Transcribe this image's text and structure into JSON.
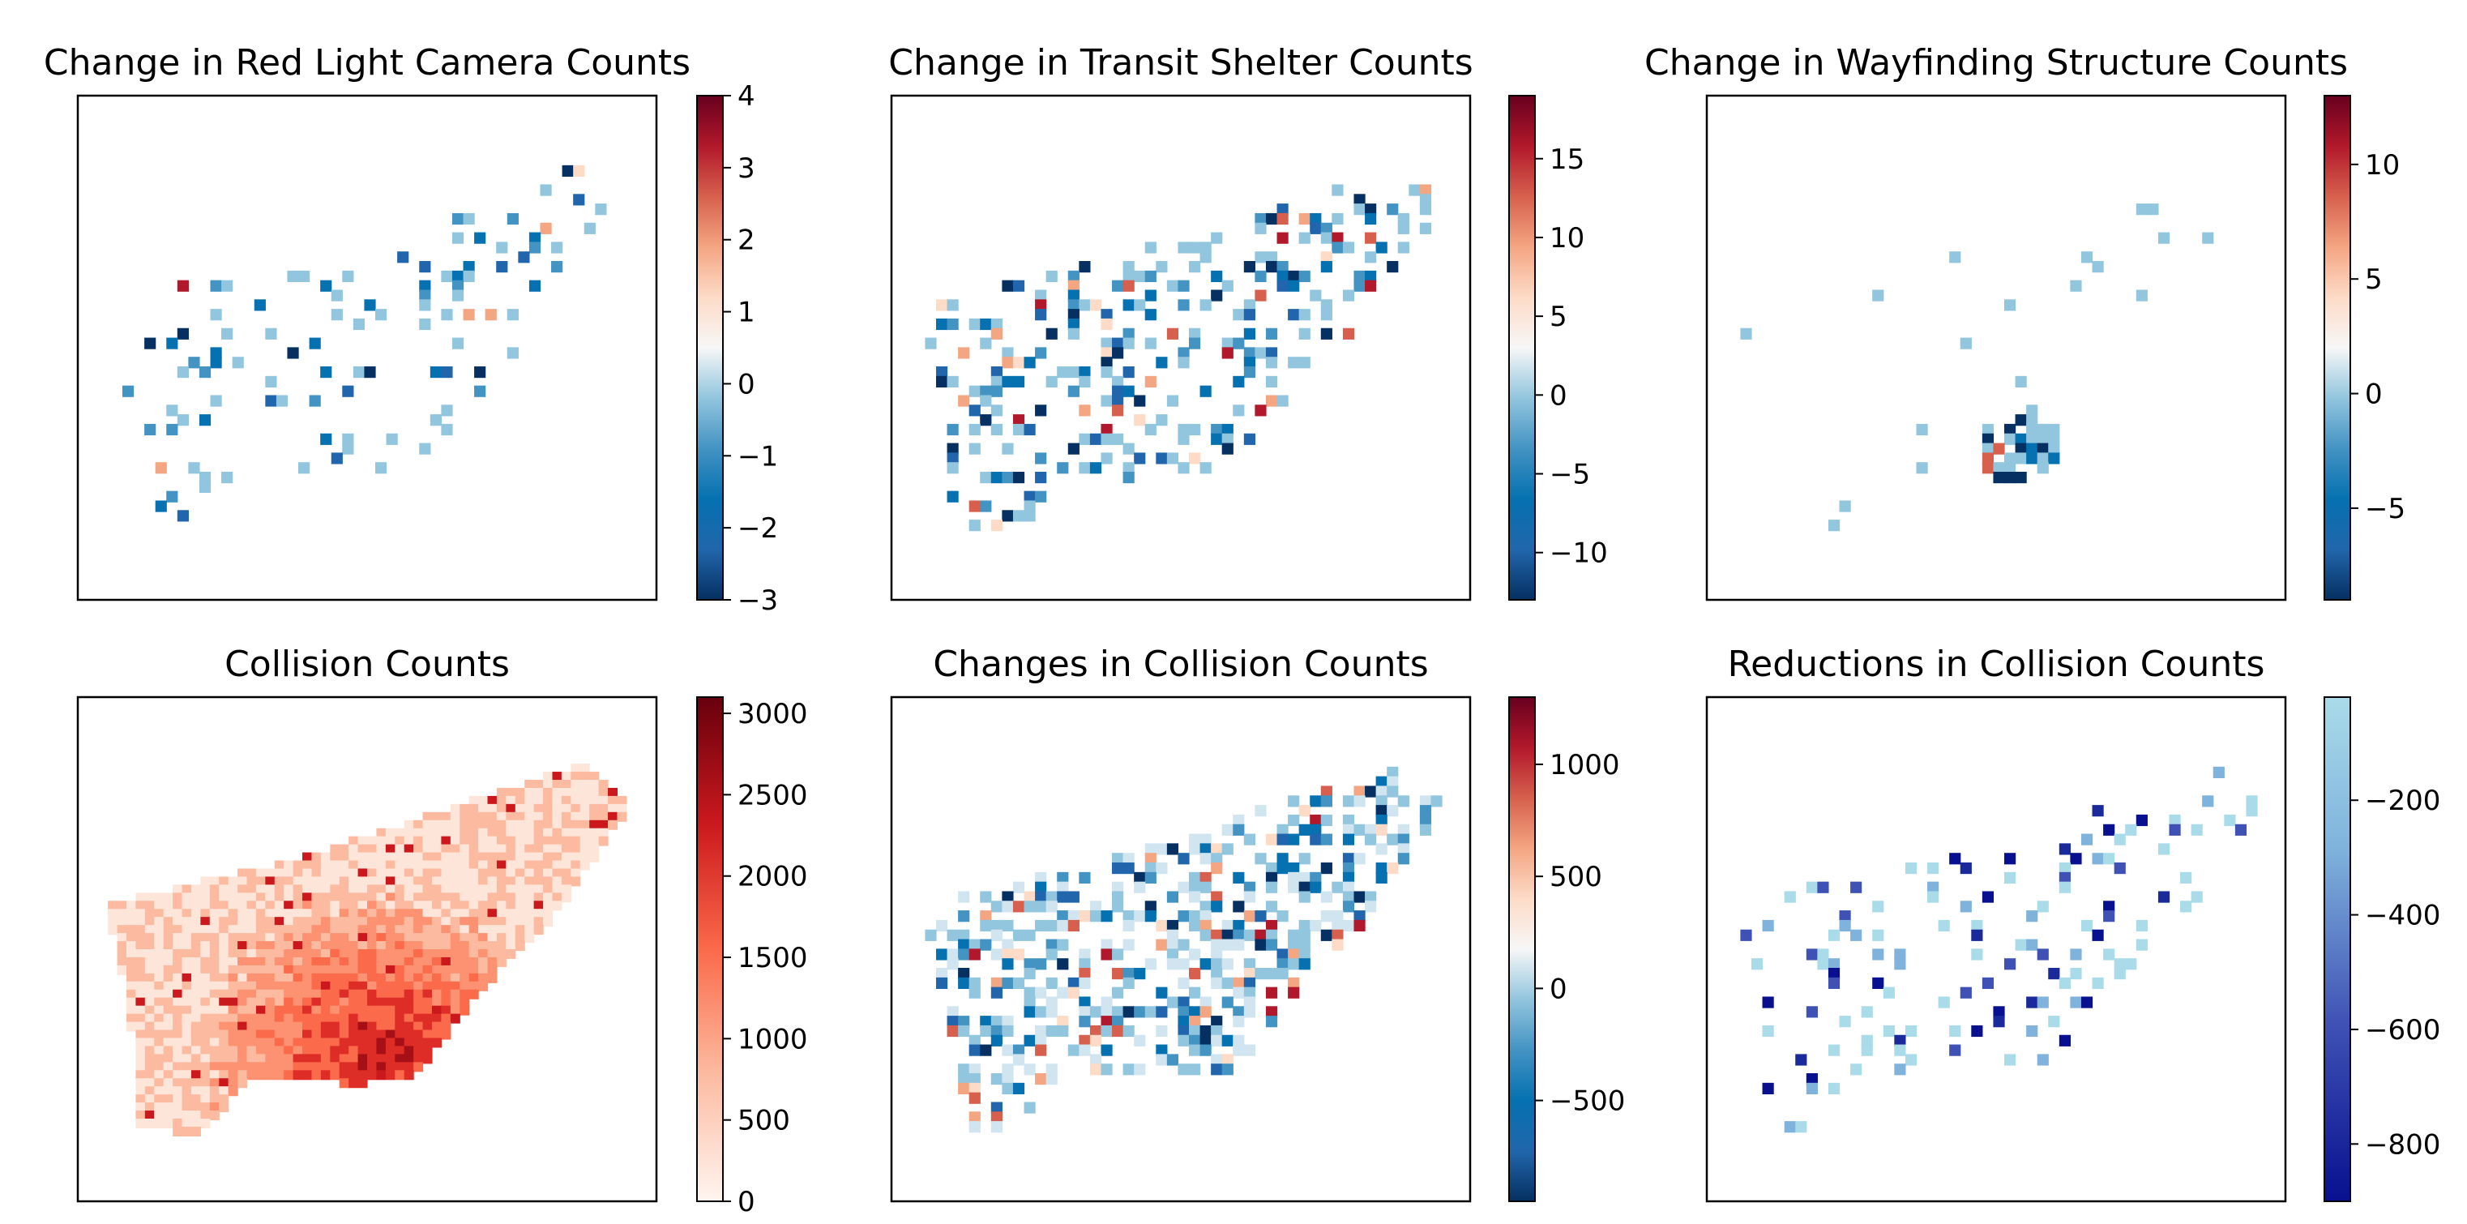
{
  "figure": {
    "description_grid": "2x3 grid of Toronto choropleth grid maps with colorbars"
  },
  "chart_data": [
    {
      "type": "heatmap",
      "title": "Change in Red Light Camera Counts",
      "colormap": "RdBu_r",
      "colorbar": {
        "vmin": -3,
        "vmax": 4,
        "ticks": [
          4,
          3,
          2,
          1,
          0,
          -1,
          -2,
          -3
        ],
        "tick_labels": [
          "4",
          "3",
          "2",
          "1",
          "0",
          "−1",
          "−2",
          "−3"
        ]
      },
      "xlabel": "",
      "ylabel": "",
      "axes_ticks": false
    },
    {
      "type": "heatmap",
      "title": "Change in Transit Shelter Counts",
      "colormap": "RdBu_r",
      "colorbar": {
        "vmin": -13,
        "vmax": 19,
        "ticks": [
          15,
          10,
          5,
          0,
          -5,
          -10
        ],
        "tick_labels": [
          "15",
          "10",
          "5",
          "0",
          "−5",
          "−10"
        ]
      },
      "xlabel": "",
      "ylabel": "",
      "axes_ticks": false
    },
    {
      "type": "heatmap",
      "title": "Change in Wayfinding Structure Counts",
      "colormap": "RdBu_r",
      "colorbar": {
        "vmin": -9,
        "vmax": 13,
        "ticks": [
          10,
          5,
          0,
          -5
        ],
        "tick_labels": [
          "10",
          "5",
          "0",
          "−5"
        ]
      },
      "xlabel": "",
      "ylabel": "",
      "axes_ticks": false
    },
    {
      "type": "heatmap",
      "title": "Collision Counts",
      "colormap": "Reds",
      "colorbar": {
        "vmin": 0,
        "vmax": 3100,
        "ticks": [
          3000,
          2500,
          2000,
          1500,
          1000,
          500,
          0
        ],
        "tick_labels": [
          "3000",
          "2500",
          "2000",
          "1500",
          "1000",
          "500",
          "0"
        ]
      },
      "xlabel": "",
      "ylabel": "",
      "axes_ticks": false
    },
    {
      "type": "heatmap",
      "title": "Changes in Collision Counts",
      "colormap": "RdBu_r",
      "colorbar": {
        "vmin": -950,
        "vmax": 1300,
        "ticks": [
          1000,
          500,
          0,
          -500
        ],
        "tick_labels": [
          "1000",
          "500",
          "0",
          "−500"
        ]
      },
      "xlabel": "",
      "ylabel": "",
      "axes_ticks": false
    },
    {
      "type": "heatmap",
      "title": "Reductions in Collision Counts",
      "colormap": "Blues_r",
      "colorbar": {
        "vmin": -900,
        "vmax": -20,
        "ticks": [
          -200,
          -400,
          -600,
          -800
        ],
        "tick_labels": [
          "−200",
          "−400",
          "−600",
          "−800"
        ]
      },
      "xlabel": "",
      "ylabel": "",
      "axes_ticks": false
    }
  ]
}
